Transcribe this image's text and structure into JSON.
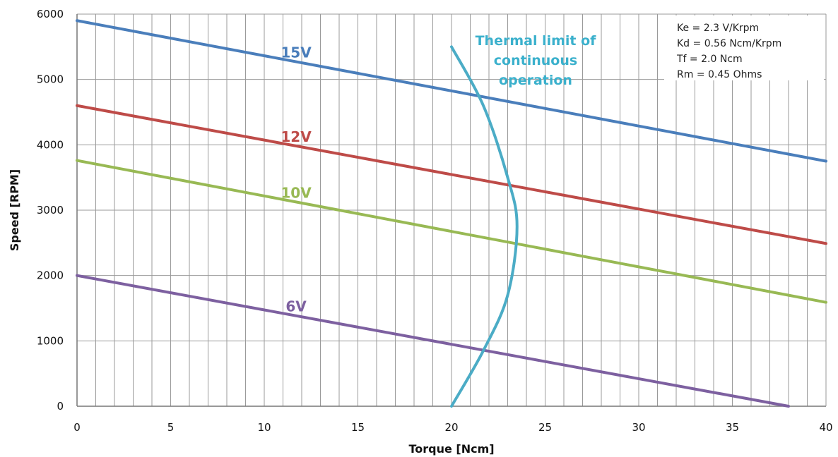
{
  "chart_data": {
    "type": "line",
    "title": "",
    "xlabel": "Torque [Ncm]",
    "ylabel": "Speed [RPM]",
    "xlim": [
      0,
      40
    ],
    "ylim": [
      0,
      6000
    ],
    "xticks": [
      0,
      5,
      10,
      15,
      20,
      25,
      30,
      35,
      40
    ],
    "yticks": [
      0,
      1000,
      2000,
      3000,
      4000,
      5000,
      6000
    ],
    "grid": true,
    "series": [
      {
        "name": "15V",
        "color": "#4a7ebb",
        "x": [
          0,
          40
        ],
        "y": [
          5900,
          3750
        ]
      },
      {
        "name": "12V",
        "color": "#be4b48",
        "x": [
          0,
          40
        ],
        "y": [
          4600,
          2490
        ]
      },
      {
        "name": "10V",
        "color": "#98b954",
        "x": [
          0,
          40
        ],
        "y": [
          3760,
          1590
        ]
      },
      {
        "name": "6V",
        "color": "#7d60a0",
        "x": [
          0,
          38
        ],
        "y": [
          2000,
          0
        ]
      }
    ],
    "thermal_limit": {
      "label_lines": [
        "Thermal limit of",
        "continuous",
        "operation"
      ],
      "color": "#4bacc6",
      "x": [
        20,
        21.7,
        23.0,
        23.5,
        23.0,
        21.7,
        20
      ],
      "y": [
        5500,
        4600,
        3500,
        2750,
        1700,
        850,
        0
      ]
    },
    "annotations": {
      "params": [
        "Ke = 2.3 V/Krpm",
        "Kd = 0.56 Ncm/Krpm",
        "Tf = 2.0 Ncm",
        "Rm = 0.45 Ohms"
      ],
      "location": "top-right"
    }
  }
}
